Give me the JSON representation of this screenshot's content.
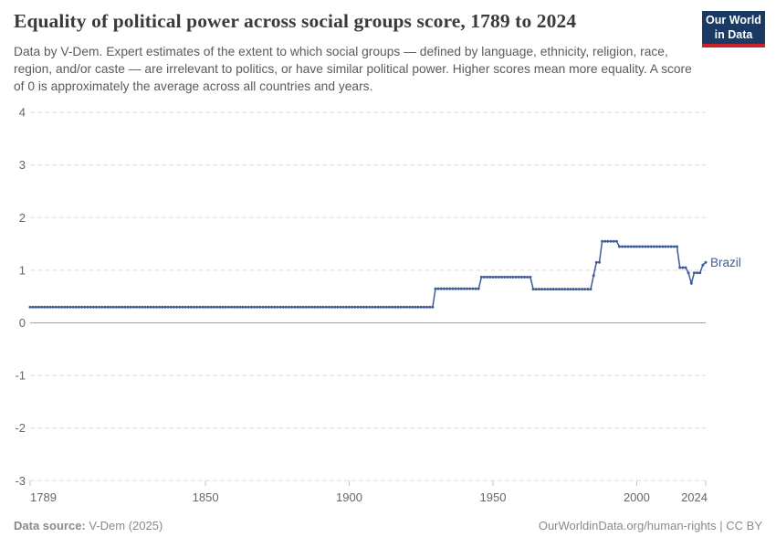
{
  "header": {
    "title": "Equality of political power across social groups score, 1789 to 2024",
    "subtitle": "Data by V-Dem. Expert estimates of the extent to which social groups — defined by language, ethnicity, religion, race, region, and/or caste — are irrelevant to politics, or have similar political power. Higher scores mean more equality. A score of 0 is approximately the average across all countries and years."
  },
  "logo": {
    "line1": "Our World",
    "line2": "in Data"
  },
  "footer": {
    "source_label": "Data source:",
    "source_value": " V-Dem (2025)",
    "right_text": "OurWorldinData.org/human-rights | CC BY"
  },
  "colors": {
    "title_text": "#3a3a3a",
    "subtitle_text": "#5a5a5a",
    "logo_bg": "#1a3a63",
    "logo_stripe": "#cb2128",
    "grid": "#dcdcdc",
    "zero_line": "#a0a0a0",
    "tick": "#c4c4c4",
    "axis_text": "#666666",
    "line": "#3d5c96",
    "footer_text": "#8a8a8a"
  },
  "chart_data": {
    "type": "line",
    "title": "Equality of political power across social groups score, 1789 to 2024",
    "xlabel": "",
    "ylabel": "",
    "xlim": [
      1789,
      2024
    ],
    "ylim": [
      -3,
      4
    ],
    "x_ticks": [
      1789,
      1850,
      1900,
      1950,
      2000,
      2024
    ],
    "y_ticks": [
      4,
      3,
      2,
      1,
      0,
      -1,
      -2,
      -3
    ],
    "grid": "horizontal-dashed",
    "legend": "inline-entity-label",
    "marker_style": "yearly-dots",
    "series": [
      {
        "name": "Brazil",
        "color": "#3d5c96",
        "steps": [
          {
            "from": 1789,
            "to": 1929,
            "value": 0.3
          },
          {
            "from": 1930,
            "to": 1945,
            "value": 0.65
          },
          {
            "from": 1946,
            "to": 1963,
            "value": 0.87
          },
          {
            "from": 1964,
            "to": 1984,
            "value": 0.64
          },
          {
            "from": 1985,
            "to": 1985,
            "value": 0.9
          },
          {
            "from": 1986,
            "to": 1987,
            "value": 1.15
          },
          {
            "from": 1988,
            "to": 1993,
            "value": 1.55
          },
          {
            "from": 1994,
            "to": 2014,
            "value": 1.45
          },
          {
            "from": 2015,
            "to": 2017,
            "value": 1.05
          },
          {
            "from": 2018,
            "to": 2018,
            "value": 0.95
          },
          {
            "from": 2019,
            "to": 2019,
            "value": 0.75
          },
          {
            "from": 2020,
            "to": 2022,
            "value": 0.95
          },
          {
            "from": 2023,
            "to": 2023,
            "value": 1.1
          },
          {
            "from": 2024,
            "to": 2024,
            "value": 1.15
          }
        ]
      }
    ]
  }
}
